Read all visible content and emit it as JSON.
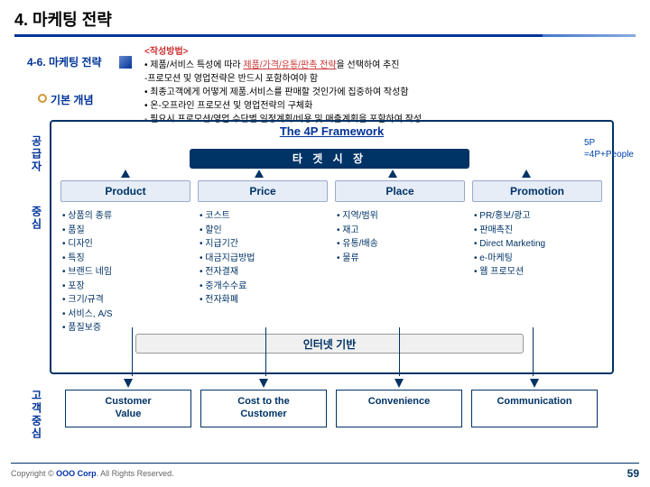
{
  "page": {
    "title": "4. 마케팅 전략"
  },
  "section": {
    "num_title": "4-6. 마케팅 전략",
    "concept": "기본 개념"
  },
  "method": {
    "title": "<작성방법>",
    "line1_a": "• 제품/서비스 특성에 따라 ",
    "line1_b": "제품/가격/유통/판촉 전략",
    "line1_c": "을 선택하여 추진",
    "line2": "-프로모션 및 영업전략은 반드시 포함하여야 함",
    "line3": "• 최종고객에게 어떻게 제품.서비스를 판매할 것인가에 집중하여 작성함",
    "line4": "• 온-오프라인 프로모션 및 영업전략의 구체화",
    "line5": "- 필요시 프로모션/영업 수단별 일정계획/비용 및 매출계획을 포함하여 작성"
  },
  "frame": {
    "title": "The 4P Framework",
    "target": "타 겟 시 장",
    "side1": "5P",
    "side2": "=4P+People",
    "internet": "인터넷 기반"
  },
  "labels": {
    "supply": "공급자",
    "center": "중심",
    "customer": "고객중심"
  },
  "cols": {
    "product": {
      "head": "Product",
      "items": [
        "상품의 종류",
        "품질",
        "디자인",
        "특징",
        "브랜드 네임",
        "포장",
        "크기/규격",
        "서비스, A/S",
        "품질보증"
      ]
    },
    "price": {
      "head": "Price",
      "items": [
        "코스트",
        "할인",
        "지급기간",
        "대금지급방법",
        "전자결재",
        "중개수수료",
        "전자화폐"
      ]
    },
    "place": {
      "head": "Place",
      "items": [
        "지역/범위",
        "재고",
        "유통/배송",
        "물류"
      ]
    },
    "promotion": {
      "head": "Promotion",
      "items": [
        "PR/홍보/광고",
        "판매촉진",
        "Direct Marketing",
        "e-마케팅",
        "웹 프로모션"
      ]
    }
  },
  "bottom": {
    "b1a": "Customer",
    "b1b": "Value",
    "b2a": "Cost to the",
    "b2b": "Customer",
    "b3": "Convenience",
    "b4": "Communication"
  },
  "footer": {
    "left_a": "Copyright © ",
    "left_b": "OOO Corp",
    "left_c": ". All Rights Reserved.",
    "page": "59"
  }
}
